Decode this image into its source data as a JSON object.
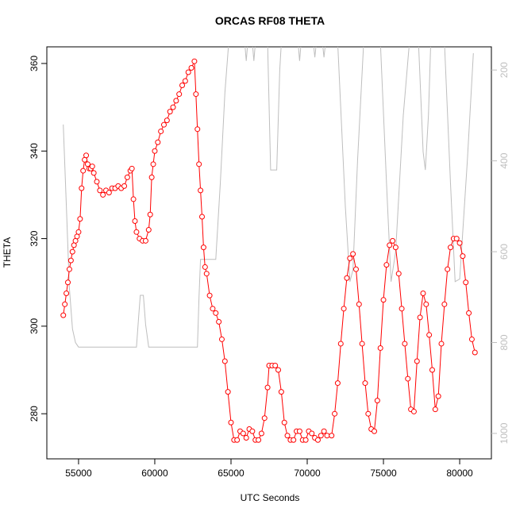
{
  "chart_data": {
    "type": "line",
    "title": "ORCAS RF08 THETA",
    "x_label": "UTC Seconds",
    "y_label": "THETA",
    "xlim": [
      52920,
      82080
    ],
    "xticks": [
      55000,
      60000,
      65000,
      70000,
      75000,
      80000
    ],
    "ylim": [
      269.7,
      363.8
    ],
    "yticks": [
      280,
      300,
      320,
      340,
      360
    ],
    "y2lim": [
      1056,
      149
    ],
    "y2ticks": [
      200,
      400,
      600,
      800,
      1000
    ],
    "series": [
      {
        "color": "#ff0000",
        "markers": true,
        "x": [
          54000,
          54100,
          54200,
          54300,
          54400,
          54500,
          54600,
          54700,
          54800,
          54900,
          55000,
          55100,
          55200,
          55300,
          55400,
          55500,
          55600,
          55700,
          55800,
          55900,
          56000,
          56200,
          56400,
          56600,
          56800,
          57000,
          57200,
          57400,
          57600,
          57800,
          58000,
          58200,
          58400,
          58500,
          58600,
          58700,
          58800,
          59000,
          59200,
          59400,
          59600,
          59700,
          59800,
          59900,
          60000,
          60200,
          60400,
          60600,
          60800,
          61000,
          61200,
          61400,
          61600,
          61800,
          62000,
          62200,
          62400,
          62600,
          62700,
          62800,
          62900,
          63000,
          63100,
          63200,
          63300,
          63400,
          63600,
          63800,
          64000,
          64200,
          64400,
          64600,
          64800,
          65000,
          65200,
          65400,
          65600,
          65800,
          66000,
          66200,
          66400,
          66600,
          66800,
          67000,
          67200,
          67400,
          67500,
          67700,
          67900,
          68100,
          68300,
          68500,
          68700,
          68900,
          69100,
          69300,
          69500,
          69700,
          69900,
          70100,
          70300,
          70500,
          70700,
          70900,
          71100,
          71300,
          71600,
          71800,
          72000,
          72200,
          72400,
          72600,
          72800,
          73000,
          73200,
          73400,
          73600,
          73800,
          74000,
          74200,
          74400,
          74600,
          74800,
          75000,
          75200,
          75400,
          75600,
          75800,
          76000,
          76200,
          76400,
          76600,
          76800,
          77000,
          77200,
          77400,
          77600,
          77800,
          78000,
          78200,
          78400,
          78600,
          78800,
          79000,
          79200,
          79400,
          79600,
          79800,
          80000,
          80200,
          80400,
          80600,
          80800,
          81000
        ],
        "values": [
          302.5,
          305,
          307.5,
          310,
          313,
          315,
          317,
          318.5,
          319.5,
          320.5,
          321.5,
          324.5,
          331.5,
          335.5,
          338,
          339,
          337,
          336,
          336,
          336.5,
          335,
          333,
          331,
          330,
          331,
          330.5,
          331.5,
          331.5,
          332,
          331.5,
          332,
          334,
          335.5,
          336,
          329,
          324,
          321.5,
          320,
          319.5,
          319.5,
          322,
          325.5,
          334,
          337,
          340,
          342,
          344.5,
          346,
          347,
          349,
          350,
          351.5,
          353,
          355,
          356,
          358,
          359,
          360.5,
          353,
          345,
          337,
          331,
          325,
          318,
          313.5,
          312,
          307,
          304,
          303,
          301,
          297,
          292,
          285,
          278,
          274,
          274,
          276,
          275.5,
          274.5,
          276.5,
          276,
          274,
          274,
          275.5,
          279,
          286,
          291,
          291,
          291,
          290,
          285,
          278,
          275,
          274,
          274,
          276,
          276,
          274,
          274,
          276,
          275.5,
          274.5,
          274,
          275,
          276,
          275,
          275,
          280,
          287,
          296,
          304,
          311,
          315.5,
          316.5,
          313,
          305,
          296,
          287,
          280,
          276.5,
          276,
          283,
          295,
          306,
          314,
          318.5,
          319.5,
          318,
          312,
          304,
          296,
          288,
          281,
          280.5,
          292,
          302,
          307.5,
          305,
          298,
          290,
          281,
          284,
          296,
          305,
          313,
          318,
          320,
          320,
          319,
          316,
          310,
          303,
          297,
          294
        ]
      },
      {
        "color": "#bebebe",
        "axis": "y2",
        "x": [
          54000,
          54200,
          54400,
          54600,
          54800,
          55000,
          58800,
          58950,
          59050,
          59250,
          59400,
          59600,
          62800,
          62900,
          63000,
          64000,
          64300,
          64600,
          64850,
          65900,
          66000,
          66100,
          66400,
          66500,
          66600,
          67400,
          67600,
          68000,
          68200,
          68300,
          69400,
          69500,
          69600,
          70400,
          70500,
          70600,
          71000,
          71100,
          71200,
          72000,
          72500,
          72800,
          73000,
          73300,
          73700,
          74800,
          75200,
          75500,
          75800,
          76300,
          76700,
          77300,
          77600,
          77750,
          77950,
          78100,
          79000,
          79400,
          79700,
          80000,
          80500,
          80900
        ],
        "values": [
          320,
          500,
          680,
          770,
          800,
          810,
          810,
          740,
          696,
          696,
          760,
          810,
          810,
          700,
          617,
          617,
          450,
          250,
          140,
          140,
          180,
          140,
          140,
          180,
          140,
          140,
          420,
          420,
          200,
          140,
          140,
          180,
          140,
          140,
          172,
          140,
          140,
          172,
          140,
          140,
          500,
          666,
          640,
          400,
          140,
          140,
          450,
          666,
          600,
          300,
          140,
          140,
          380,
          420,
          300,
          140,
          140,
          450,
          666,
          660,
          400,
          163
        ]
      }
    ]
  }
}
